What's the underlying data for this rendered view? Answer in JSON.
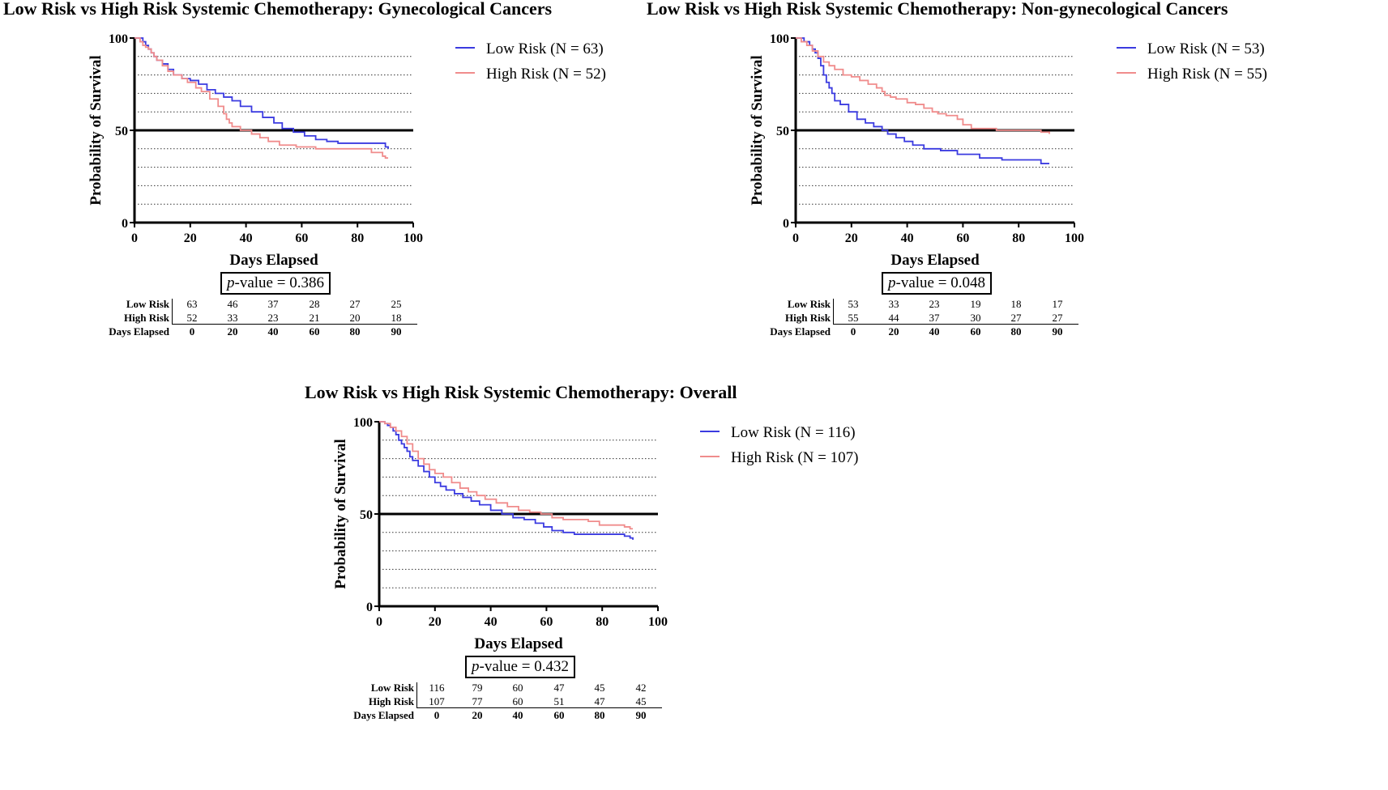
{
  "panels": [
    {
      "title": "Low Risk vs High Risk Systemic Chemotherapy: Gynecological Cancers",
      "p_value_prefix": "p",
      "p_value_text": "-value = 0.386",
      "risk_table": {
        "row_labels": [
          "Low Risk",
          "High Risk",
          "Days Elapsed"
        ],
        "low_risk": [
          "63",
          "46",
          "37",
          "28",
          "27",
          "25"
        ],
        "high_risk": [
          "52",
          "33",
          "23",
          "21",
          "20",
          "18"
        ],
        "days": [
          "0",
          "20",
          "40",
          "60",
          "80",
          "90"
        ]
      }
    },
    {
      "title": "Low Risk vs High Risk Systemic Chemotherapy: Non-gynecological Cancers",
      "p_value_prefix": "p",
      "p_value_text": "-value = 0.048",
      "risk_table": {
        "row_labels": [
          "Low Risk",
          "High Risk",
          "Days Elapsed"
        ],
        "low_risk": [
          "53",
          "33",
          "23",
          "19",
          "18",
          "17"
        ],
        "high_risk": [
          "55",
          "44",
          "37",
          "30",
          "27",
          "27"
        ],
        "days": [
          "0",
          "20",
          "40",
          "60",
          "80",
          "90"
        ]
      }
    },
    {
      "title": "Low Risk vs High Risk Systemic Chemotherapy: Overall",
      "p_value_prefix": "p",
      "p_value_text": "-value = 0.432",
      "risk_table": {
        "row_labels": [
          "Low Risk",
          "High Risk",
          "Days Elapsed"
        ],
        "low_risk": [
          "116",
          "79",
          "60",
          "47",
          "45",
          "42"
        ],
        "high_risk": [
          "107",
          "77",
          "60",
          "51",
          "47",
          "45"
        ],
        "days": [
          "0",
          "20",
          "40",
          "60",
          "80",
          "90"
        ]
      }
    }
  ],
  "chart_data": [
    {
      "type": "line",
      "title": "Low Risk vs High Risk Systemic Chemotherapy: Gynecological Cancers",
      "xlabel": "Days Elapsed",
      "ylabel": "Probability of Survival",
      "xlim": [
        0,
        100
      ],
      "ylim": [
        0,
        100
      ],
      "x_ticks": [
        "0",
        "20",
        "40",
        "60",
        "80",
        "100"
      ],
      "y_ticks": [
        "0",
        "50",
        "100"
      ],
      "reference_line": 50,
      "grid": "dotted horizontal",
      "legend_position": "right",
      "series": [
        {
          "name": "Low Risk (N = 63)",
          "color": "#3b3be0",
          "x": [
            0,
            3,
            4,
            5,
            6,
            7,
            8,
            10,
            12,
            14,
            17,
            20,
            23,
            26,
            29,
            32,
            35,
            38,
            42,
            46,
            50,
            53,
            57,
            61,
            65,
            69,
            73,
            77,
            81,
            85,
            89,
            90,
            91
          ],
          "y": [
            100,
            98,
            96,
            94,
            92,
            90,
            88,
            86,
            83,
            80,
            78,
            77,
            75,
            72,
            70,
            68,
            66,
            63,
            60,
            57,
            54,
            51,
            49,
            47,
            45,
            44,
            43,
            43,
            43,
            43,
            43,
            41,
            40
          ]
        },
        {
          "name": "High Risk (N = 52)",
          "color": "#f08c8c",
          "x": [
            0,
            2,
            3,
            4,
            5,
            6,
            7,
            8,
            10,
            12,
            14,
            17,
            19,
            22,
            24,
            27,
            30,
            32,
            33,
            34,
            35,
            38,
            42,
            45,
            48,
            52,
            58,
            65,
            72,
            76,
            80,
            85,
            88,
            89,
            90,
            91
          ],
          "y": [
            100,
            98,
            96,
            95,
            94,
            92,
            90,
            88,
            85,
            82,
            80,
            78,
            76,
            73,
            71,
            67,
            63,
            59,
            56,
            54,
            52,
            50,
            48,
            46,
            44,
            42,
            41,
            40,
            40,
            40,
            40,
            38,
            38,
            36,
            35,
            35
          ]
        }
      ]
    },
    {
      "type": "line",
      "title": "Low Risk vs High Risk Systemic Chemotherapy: Non-gynecological Cancers",
      "xlabel": "Days Elapsed",
      "ylabel": "Probability of Survival",
      "xlim": [
        0,
        100
      ],
      "ylim": [
        0,
        100
      ],
      "x_ticks": [
        "0",
        "20",
        "40",
        "60",
        "80",
        "100"
      ],
      "y_ticks": [
        "0",
        "50",
        "100"
      ],
      "reference_line": 50,
      "grid": "dotted horizontal",
      "legend_position": "right",
      "series": [
        {
          "name": "Low Risk (N = 53)",
          "color": "#3b3be0",
          "x": [
            0,
            3,
            5,
            6,
            7,
            8,
            9,
            10,
            11,
            12,
            13,
            14,
            16,
            19,
            22,
            25,
            28,
            31,
            33,
            36,
            39,
            42,
            46,
            52,
            58,
            66,
            74,
            84,
            88,
            91
          ],
          "y": [
            100,
            98,
            96,
            94,
            92,
            89,
            85,
            80,
            76,
            73,
            70,
            66,
            64,
            60,
            56,
            54,
            52,
            50,
            48,
            46,
            44,
            42,
            40,
            39,
            37,
            35,
            34,
            34,
            32,
            32
          ]
        },
        {
          "name": "High Risk (N = 55)",
          "color": "#f08c8c",
          "x": [
            0,
            2,
            4,
            6,
            8,
            10,
            12,
            14,
            17,
            20,
            23,
            26,
            29,
            31,
            32,
            34,
            36,
            40,
            43,
            46,
            49,
            51,
            54,
            58,
            60,
            63,
            66,
            72,
            80,
            88,
            91
          ],
          "y": [
            100,
            98,
            96,
            93,
            90,
            87,
            85,
            83,
            80,
            79,
            77,
            75,
            73,
            71,
            69,
            68,
            67,
            65,
            64,
            62,
            60,
            59,
            58,
            56,
            53,
            51,
            51,
            50,
            50,
            49,
            48
          ]
        }
      ]
    },
    {
      "type": "line",
      "title": "Low Risk vs High Risk Systemic Chemotherapy: Overall",
      "xlabel": "Days Elapsed",
      "ylabel": "Probability of Survival",
      "xlim": [
        0,
        100
      ],
      "ylim": [
        0,
        100
      ],
      "x_ticks": [
        "0",
        "20",
        "40",
        "60",
        "80",
        "100"
      ],
      "y_ticks": [
        "0",
        "50",
        "100"
      ],
      "reference_line": 50,
      "grid": "dotted horizontal",
      "legend_position": "right",
      "series": [
        {
          "name": "Low Risk (N = 116)",
          "color": "#3b3be0",
          "x": [
            0,
            2,
            3,
            4,
            5,
            6,
            7,
            8,
            9,
            10,
            11,
            12,
            14,
            16,
            18,
            20,
            22,
            24,
            27,
            30,
            33,
            36,
            40,
            44,
            48,
            52,
            56,
            59,
            62,
            66,
            70,
            75,
            80,
            85,
            88,
            90,
            91
          ],
          "y": [
            100,
            99,
            98,
            97,
            95,
            93,
            90,
            88,
            86,
            84,
            81,
            79,
            76,
            73,
            70,
            67,
            65,
            63,
            61,
            59,
            57,
            55,
            52,
            50,
            48,
            47,
            45,
            43,
            41,
            40,
            39,
            39,
            39,
            39,
            38,
            37,
            36
          ]
        },
        {
          "name": "High Risk (N = 107)",
          "color": "#f08c8c",
          "x": [
            0,
            2,
            4,
            6,
            8,
            10,
            12,
            14,
            16,
            18,
            20,
            23,
            26,
            29,
            32,
            35,
            38,
            42,
            46,
            50,
            54,
            58,
            62,
            66,
            70,
            75,
            79,
            84,
            88,
            90,
            91
          ],
          "y": [
            100,
            99,
            97,
            95,
            92,
            88,
            84,
            80,
            77,
            74,
            72,
            70,
            67,
            64,
            62,
            60,
            58,
            56,
            54,
            52,
            51,
            50,
            48,
            47,
            47,
            46,
            44,
            44,
            43,
            42,
            42
          ]
        }
      ]
    }
  ]
}
